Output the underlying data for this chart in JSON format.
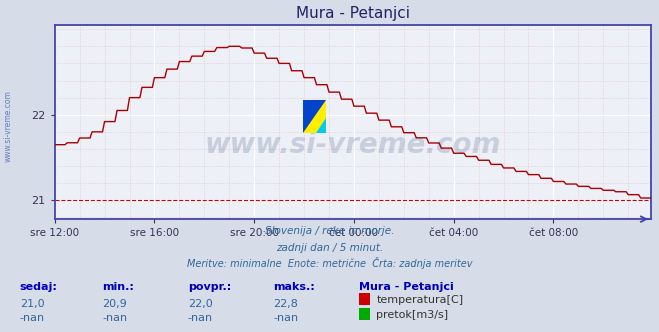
{
  "title": "Mura - Petanjci",
  "bg_color": "#d6dce8",
  "plot_bg_color": "#eef0f8",
  "line_color": "#aa0000",
  "axis_color": "#4444aa",
  "xlabels": [
    "sre 12:00",
    "sre 16:00",
    "sre 20:00",
    "čet 00:00",
    "čet 04:00",
    "čet 08:00"
  ],
  "xtick_positions": [
    0,
    48,
    96,
    144,
    192,
    240
  ],
  "ylim": [
    20.78,
    23.05
  ],
  "yticks": [
    21,
    22
  ],
  "total_points": 288,
  "subtitle_line1": "Slovenija / reke in morje.",
  "subtitle_line2": "zadnji dan / 5 minut.",
  "subtitle_line3": "Meritve: minimalne  Enote: metrične  Črta: zadnja meritev",
  "footer_col1_label": "sedaj:",
  "footer_col2_label": "min.:",
  "footer_col3_label": "povpr.:",
  "footer_col4_label": "maks.:",
  "footer_col5_label": "Mura - Petanjci",
  "footer_col1_val": "21,0",
  "footer_col2_val": "20,9",
  "footer_col3_val": "22,0",
  "footer_col4_val": "22,8",
  "footer_legend1": "temperatura[C]",
  "footer_legend2": "pretok[m3/s]",
  "legend_color1": "#cc0000",
  "legend_color2": "#00aa00",
  "watermark_text": "www.si-vreme.com",
  "watermark_color": "#1a3a6a",
  "watermark_alpha": 0.18,
  "left_label": "www.si-vreme.com",
  "keypoints_x": [
    0,
    8,
    18,
    28,
    36,
    46,
    55,
    62,
    70,
    76,
    84,
    90,
    96,
    108,
    115,
    124,
    133,
    144,
    155,
    165,
    175,
    185,
    192,
    200,
    210,
    220,
    228,
    235,
    240,
    248,
    255,
    263,
    270,
    277,
    283,
    287
  ],
  "keypoints_y": [
    21.65,
    21.68,
    21.8,
    22.0,
    22.2,
    22.4,
    22.55,
    22.65,
    22.72,
    22.78,
    22.8,
    22.78,
    22.72,
    22.6,
    22.5,
    22.38,
    22.25,
    22.1,
    21.95,
    21.82,
    21.72,
    21.62,
    21.55,
    21.5,
    21.42,
    21.35,
    21.3,
    21.25,
    21.22,
    21.18,
    21.15,
    21.12,
    21.1,
    21.06,
    21.02,
    21.0
  ]
}
